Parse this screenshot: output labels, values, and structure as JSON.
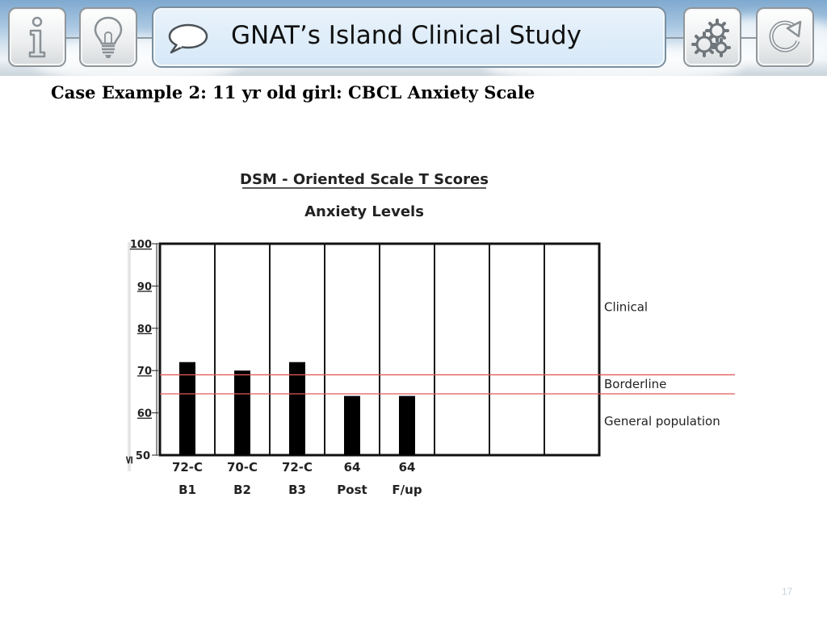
{
  "header": {
    "title": "GNAT’s Island Clinical Study",
    "buttons": [
      {
        "name": "info",
        "icon": "info-icon"
      },
      {
        "name": "ideas",
        "icon": "lightbulb-icon"
      },
      {
        "name": "settings",
        "icon": "gears-icon"
      },
      {
        "name": "refresh",
        "icon": "refresh-icon"
      }
    ],
    "title_icon": "speech-bubble-icon"
  },
  "slide": {
    "case_title": "Case Example 2: 11 yr old girl: CBCL Anxiety Scale",
    "page_number": "17"
  },
  "chart_data": {
    "type": "bar",
    "title": "DSM - Oriented Scale T Scores",
    "subtitle": "Anxiety Levels",
    "categories": [
      "B1",
      "B2",
      "B3",
      "Post",
      "F/up"
    ],
    "value_labels": [
      "72-C",
      "70-C",
      "72-C",
      "64",
      "64"
    ],
    "values": [
      72,
      70,
      72,
      64,
      64
    ],
    "total_columns": 8,
    "ylim": [
      50,
      100
    ],
    "y_ticks": [
      "100",
      "90",
      "80",
      "70",
      "60",
      "≤ 50"
    ],
    "y_tick_values": [
      100,
      90,
      80,
      70,
      60,
      50
    ],
    "reference_lines": [
      {
        "value": 69,
        "color": "#e05a5a"
      },
      {
        "value": 64.5,
        "color": "#e05a5a"
      }
    ],
    "zones": [
      "Clinical",
      "Borderline",
      "General population"
    ],
    "zone_values": [
      85,
      66.8,
      58
    ],
    "bar_color": "#000000",
    "grid": true
  }
}
